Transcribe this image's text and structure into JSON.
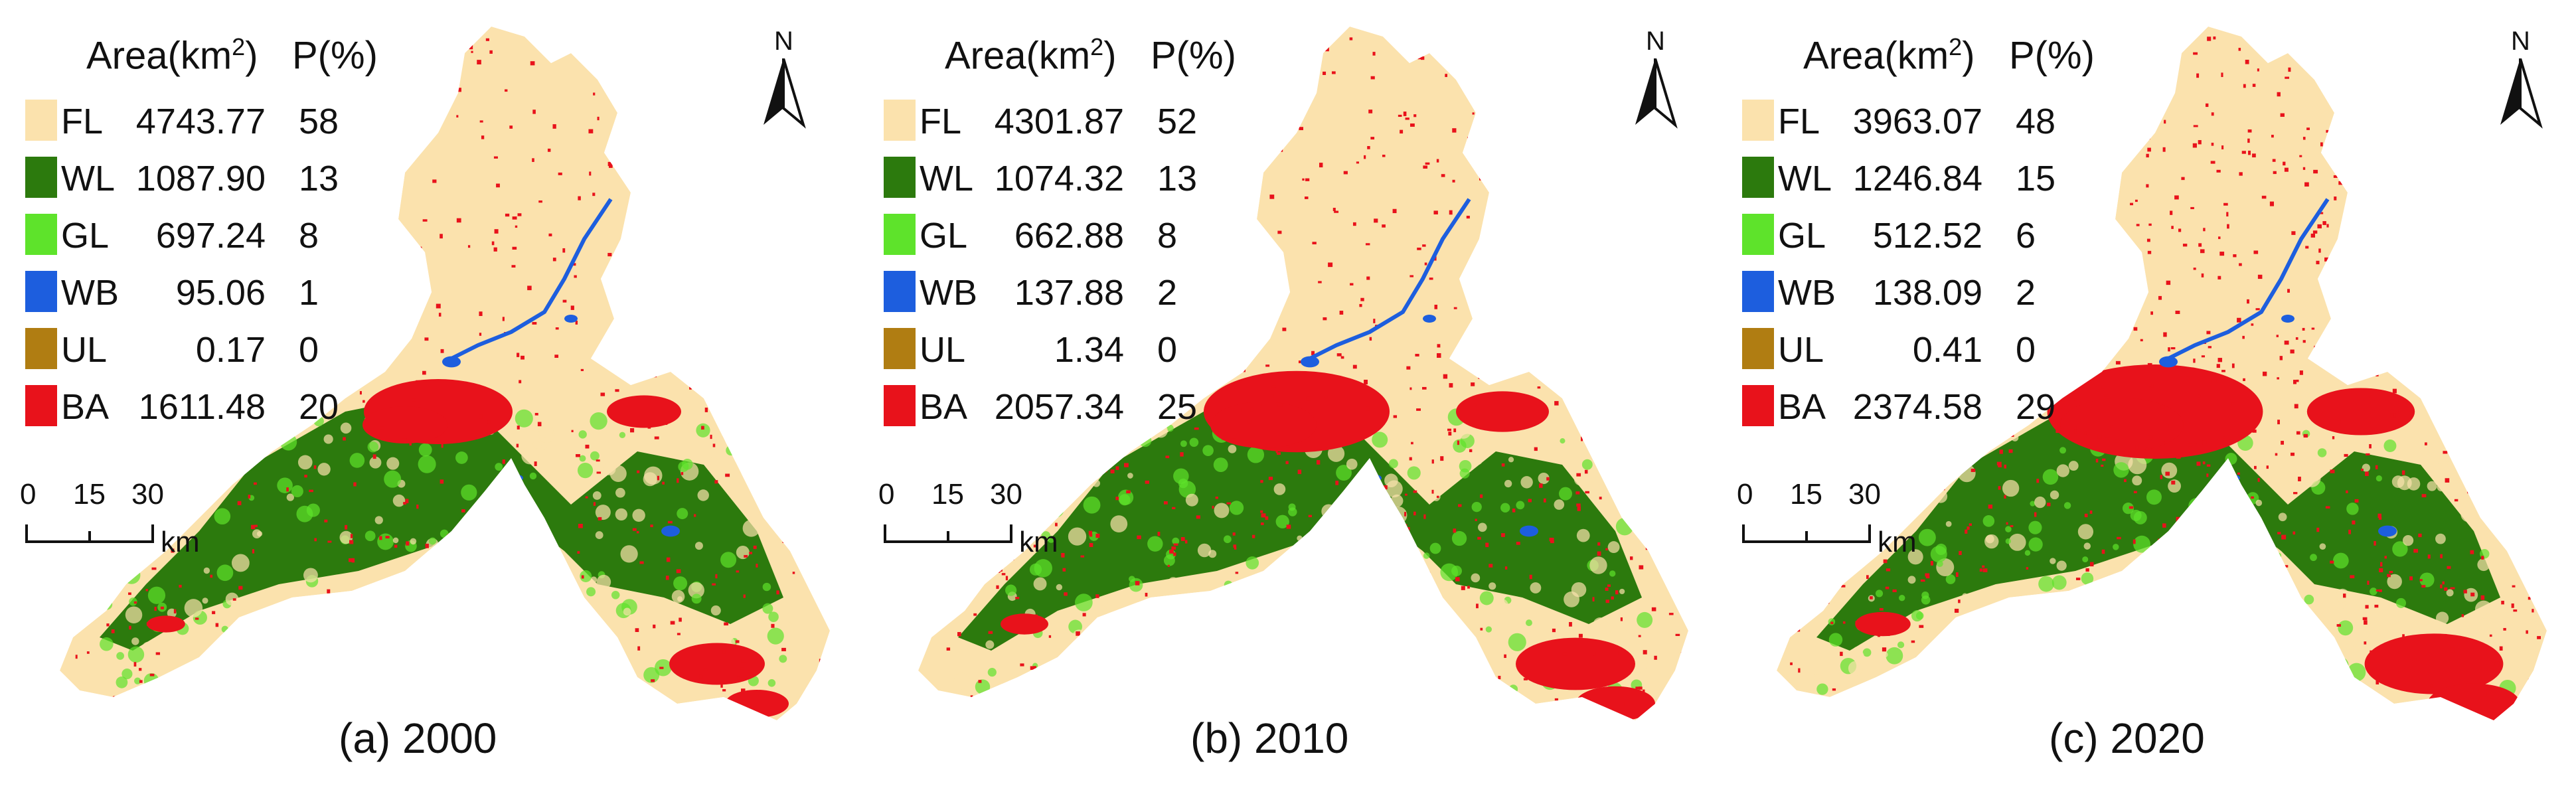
{
  "legend_header": {
    "area_label": "Area(km",
    "area_sup": "2",
    "area_close": ")",
    "pct_label": "P(%)"
  },
  "scale_bar": {
    "ticks": [
      "0",
      "15",
      "30"
    ],
    "unit": "km"
  },
  "north_arrow": "N",
  "colors": {
    "FL": "#fbe2ad",
    "WL": "#2c7a0d",
    "GL": "#5ee32b",
    "WB": "#1d5ede",
    "UL": "#b07d12",
    "BA": "#e8121b"
  },
  "panels": [
    {
      "caption": "(a) 2000",
      "classes": [
        {
          "code": "FL",
          "area": "4743.77",
          "p": "58"
        },
        {
          "code": "WL",
          "area": "1087.90",
          "p": "13"
        },
        {
          "code": "GL",
          "area": "697.24",
          "p": "8"
        },
        {
          "code": "WB",
          "area": "95.06",
          "p": "1"
        },
        {
          "code": "UL",
          "area": "0.17",
          "p": "0"
        },
        {
          "code": "BA",
          "area": "1611.48",
          "p": "20"
        }
      ]
    },
    {
      "caption": "(b) 2010",
      "classes": [
        {
          "code": "FL",
          "area": "4301.87",
          "p": "52"
        },
        {
          "code": "WL",
          "area": "1074.32",
          "p": "13"
        },
        {
          "code": "GL",
          "area": "662.88",
          "p": "8"
        },
        {
          "code": "WB",
          "area": "137.88",
          "p": "2"
        },
        {
          "code": "UL",
          "area": "1.34",
          "p": "0"
        },
        {
          "code": "BA",
          "area": "2057.34",
          "p": "25"
        }
      ]
    },
    {
      "caption": "(c) 2020",
      "classes": [
        {
          "code": "FL",
          "area": "3963.07",
          "p": "48"
        },
        {
          "code": "WL",
          "area": "1246.84",
          "p": "15"
        },
        {
          "code": "GL",
          "area": "512.52",
          "p": "6"
        },
        {
          "code": "WB",
          "area": "138.09",
          "p": "2"
        },
        {
          "code": "UL",
          "area": "0.41",
          "p": "0"
        },
        {
          "code": "BA",
          "area": "2374.58",
          "p": "29"
        }
      ]
    }
  ]
}
